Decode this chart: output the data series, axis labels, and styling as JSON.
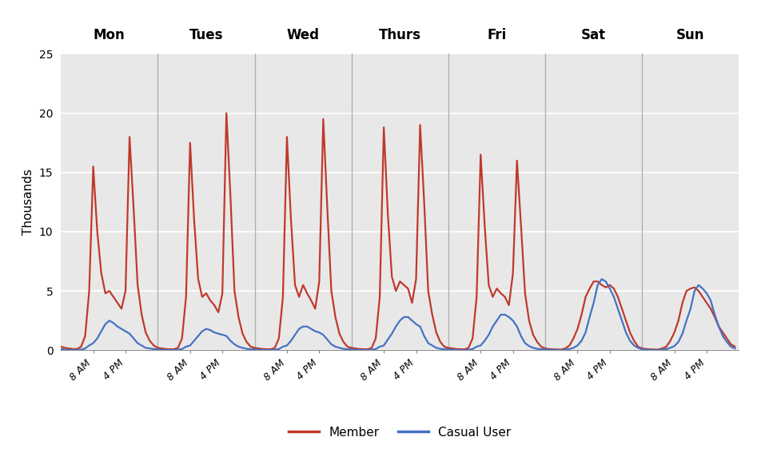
{
  "days": [
    "Mon",
    "Tues",
    "Wed",
    "Thurs",
    "Fri",
    "Sat",
    "Sun"
  ],
  "ylabel": "Thousands",
  "ylim": [
    0,
    25
  ],
  "yticks": [
    0,
    5,
    10,
    15,
    20,
    25
  ],
  "member_color": "#c0392b",
  "casual_color": "#4472c4",
  "line_width": 1.6,
  "bg_color": "#e8e8e8",
  "plot_bg_color": "#e8e8e8",
  "fig_bg_color": "#ffffff",
  "legend_labels": [
    "Member",
    "Casual User"
  ],
  "hours_per_day": 24,
  "total_days": 7,
  "day_sep_color": "#b0b0b0",
  "grid_color": "#ffffff",
  "member_data": [
    0.3,
    0.2,
    0.15,
    0.1,
    0.1,
    0.3,
    1.2,
    5.0,
    15.5,
    10.0,
    6.5,
    4.8,
    5.0,
    4.5,
    4.0,
    3.5,
    5.0,
    18.0,
    12.0,
    5.5,
    3.0,
    1.5,
    0.8,
    0.4,
    0.2,
    0.15,
    0.1,
    0.08,
    0.08,
    0.2,
    1.0,
    4.5,
    17.5,
    11.0,
    6.0,
    4.5,
    4.8,
    4.2,
    3.8,
    3.2,
    4.8,
    20.0,
    13.0,
    5.0,
    2.8,
    1.4,
    0.7,
    0.3,
    0.2,
    0.15,
    0.1,
    0.08,
    0.08,
    0.2,
    1.0,
    4.5,
    18.0,
    11.0,
    5.5,
    4.5,
    5.5,
    4.8,
    4.2,
    3.5,
    5.8,
    19.5,
    12.0,
    5.0,
    2.8,
    1.4,
    0.7,
    0.3,
    0.2,
    0.15,
    0.1,
    0.08,
    0.08,
    0.2,
    1.0,
    4.5,
    18.8,
    11.5,
    6.2,
    5.0,
    5.8,
    5.5,
    5.2,
    4.0,
    6.0,
    19.0,
    12.5,
    5.0,
    3.0,
    1.5,
    0.7,
    0.3,
    0.2,
    0.15,
    0.1,
    0.08,
    0.08,
    0.2,
    1.0,
    4.5,
    16.5,
    10.5,
    5.5,
    4.5,
    5.2,
    4.8,
    4.5,
    3.8,
    6.5,
    16.0,
    10.5,
    4.8,
    2.5,
    1.3,
    0.7,
    0.3,
    0.15,
    0.1,
    0.08,
    0.06,
    0.06,
    0.15,
    0.4,
    1.0,
    1.8,
    3.0,
    4.5,
    5.2,
    5.8,
    5.8,
    5.5,
    5.3,
    5.5,
    5.2,
    4.5,
    3.5,
    2.5,
    1.5,
    0.8,
    0.3,
    0.15,
    0.1,
    0.08,
    0.06,
    0.06,
    0.15,
    0.3,
    0.8,
    1.5,
    2.5,
    4.0,
    5.0,
    5.2,
    5.3,
    5.0,
    4.5,
    4.0,
    3.5,
    2.8,
    2.0,
    1.5,
    1.0,
    0.5,
    0.3
  ],
  "casual_data": [
    0.1,
    0.05,
    0.03,
    0.02,
    0.02,
    0.05,
    0.15,
    0.4,
    0.6,
    1.0,
    1.6,
    2.2,
    2.5,
    2.3,
    2.0,
    1.8,
    1.6,
    1.4,
    1.0,
    0.6,
    0.4,
    0.2,
    0.15,
    0.1,
    0.08,
    0.04,
    0.02,
    0.01,
    0.01,
    0.04,
    0.1,
    0.3,
    0.4,
    0.8,
    1.2,
    1.6,
    1.8,
    1.7,
    1.5,
    1.4,
    1.3,
    1.2,
    0.8,
    0.5,
    0.3,
    0.2,
    0.12,
    0.08,
    0.08,
    0.04,
    0.02,
    0.01,
    0.01,
    0.04,
    0.1,
    0.3,
    0.4,
    0.8,
    1.3,
    1.8,
    2.0,
    2.0,
    1.8,
    1.6,
    1.5,
    1.3,
    0.9,
    0.5,
    0.3,
    0.2,
    0.12,
    0.08,
    0.08,
    0.04,
    0.02,
    0.01,
    0.01,
    0.04,
    0.1,
    0.3,
    0.4,
    0.9,
    1.4,
    2.0,
    2.5,
    2.8,
    2.8,
    2.5,
    2.2,
    2.0,
    1.2,
    0.6,
    0.4,
    0.2,
    0.12,
    0.08,
    0.08,
    0.04,
    0.02,
    0.01,
    0.01,
    0.04,
    0.1,
    0.3,
    0.4,
    0.8,
    1.3,
    2.0,
    2.5,
    3.0,
    3.0,
    2.8,
    2.5,
    2.0,
    1.2,
    0.6,
    0.35,
    0.2,
    0.12,
    0.08,
    0.08,
    0.04,
    0.02,
    0.01,
    0.01,
    0.04,
    0.1,
    0.2,
    0.4,
    0.8,
    1.5,
    2.8,
    4.0,
    5.5,
    6.0,
    5.8,
    5.2,
    4.5,
    3.5,
    2.5,
    1.5,
    0.8,
    0.4,
    0.2,
    0.08,
    0.04,
    0.02,
    0.01,
    0.01,
    0.04,
    0.1,
    0.2,
    0.35,
    0.7,
    1.4,
    2.5,
    3.5,
    5.0,
    5.5,
    5.2,
    4.8,
    4.2,
    3.0,
    2.0,
    1.2,
    0.7,
    0.3,
    0.15
  ]
}
